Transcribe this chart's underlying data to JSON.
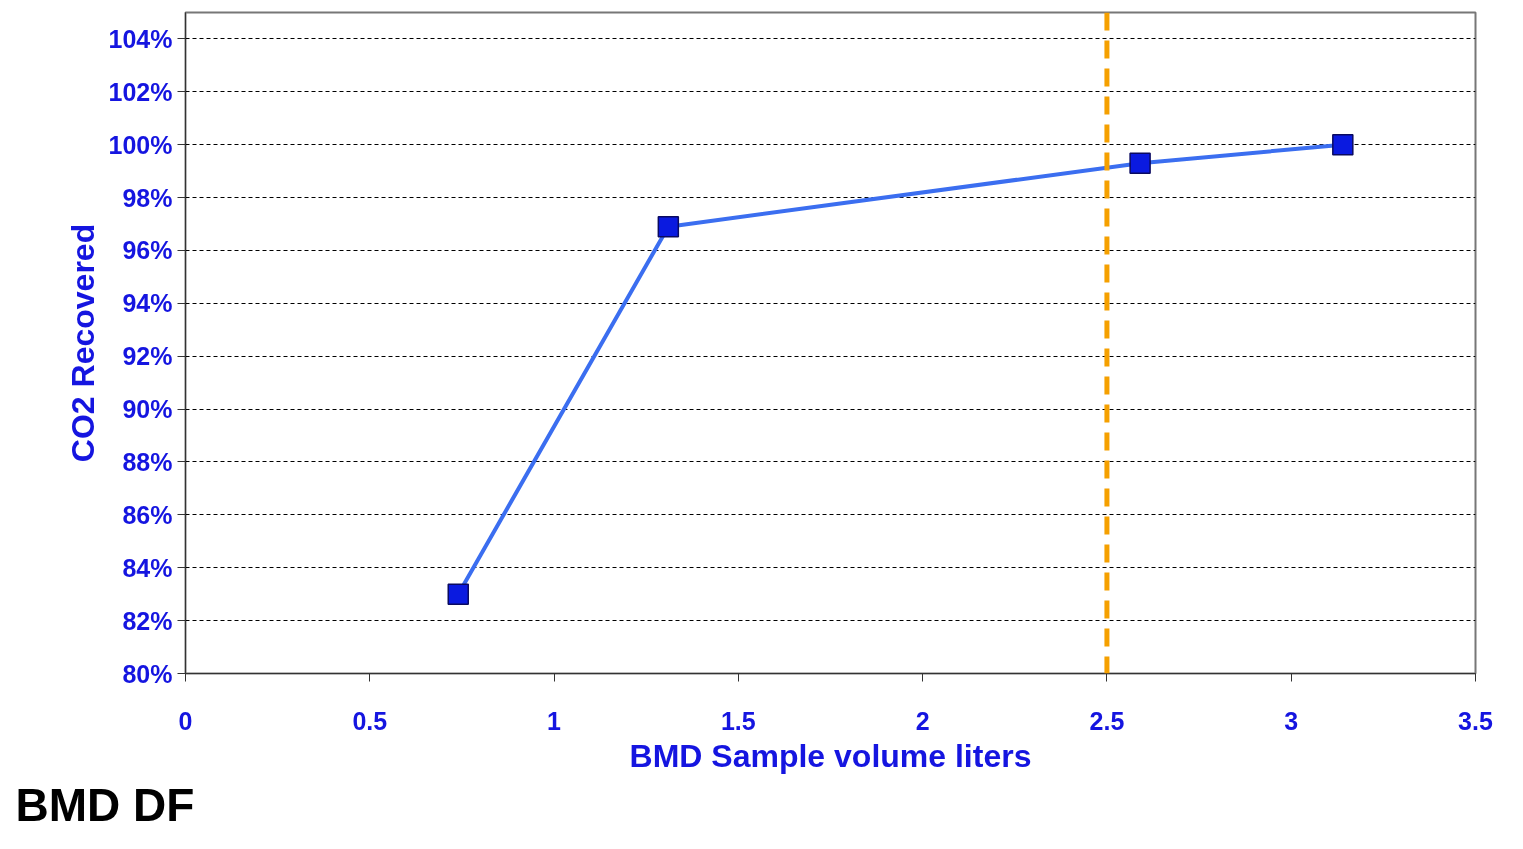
{
  "chart_data": {
    "type": "line",
    "xlabel": "BMD Sample volume liters",
    "ylabel": "CO2 Recovered",
    "annotations": [
      "BMD DF"
    ],
    "x": [
      0.74,
      1.31,
      2.59,
      3.14
    ],
    "series": [
      {
        "color": "#3b6ef0",
        "values": [
          83.0,
          96.9,
          99.3,
          100.0
        ]
      }
    ],
    "marker": "square",
    "xlim": [
      0,
      3.5
    ],
    "xticks": [
      0,
      0.5,
      1,
      1.5,
      2,
      2.5,
      3,
      3.5
    ],
    "ylim": [
      80,
      105
    ],
    "yticks": [
      {
        "value": 80,
        "label": "80%"
      },
      {
        "value": 82,
        "label": "82%"
      },
      {
        "value": 84,
        "label": "84%"
      },
      {
        "value": 86,
        "label": "86%"
      },
      {
        "value": 88,
        "label": "88%"
      },
      {
        "value": 90,
        "label": "90%"
      },
      {
        "value": 92,
        "label": "92%"
      },
      {
        "value": 94,
        "label": "94%"
      },
      {
        "value": 96,
        "label": "96%"
      },
      {
        "value": 98,
        "label": "98%"
      },
      {
        "value": 100,
        "label": "100%"
      },
      {
        "value": 102,
        "label": "102%"
      },
      {
        "value": 104,
        "label": "104%"
      }
    ],
    "ref_lines": [
      {
        "axis": "x",
        "value": 2.5,
        "color": "#f5a000",
        "line_style": "dashed"
      }
    ],
    "grid": "y"
  }
}
